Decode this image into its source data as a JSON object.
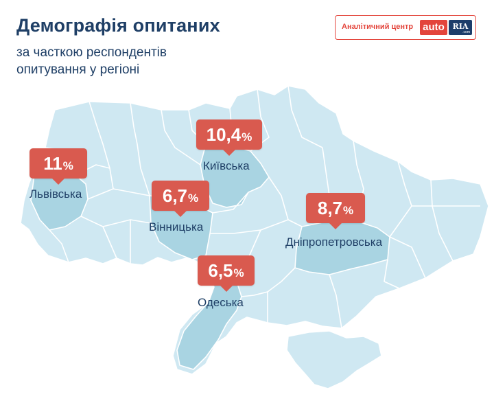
{
  "header": {
    "title": "Демографія опитаних",
    "subtitle_line1": "за часткою респондентів",
    "subtitle_line2": "опитування у регіоні"
  },
  "brand": {
    "label": "Аналітичний центр",
    "logo_part1": "auto",
    "logo_part2": "RIA",
    "logo_domain": ".com"
  },
  "colors": {
    "land": "#cfe8f2",
    "highlight": "#a9d4e2",
    "border": "#ffffff",
    "callout": "#d95a4f",
    "text": "#1f3f66"
  },
  "regions": [
    {
      "name": "Львівська",
      "value": "11",
      "unit": "%"
    },
    {
      "name": "Київська",
      "value": "10,4",
      "unit": "%"
    },
    {
      "name": "Вінницька",
      "value": "6,7",
      "unit": "%"
    },
    {
      "name": "Дніпропетровська",
      "value": "8,7",
      "unit": "%"
    },
    {
      "name": "Одеська",
      "value": "6,5",
      "unit": "%"
    }
  ]
}
